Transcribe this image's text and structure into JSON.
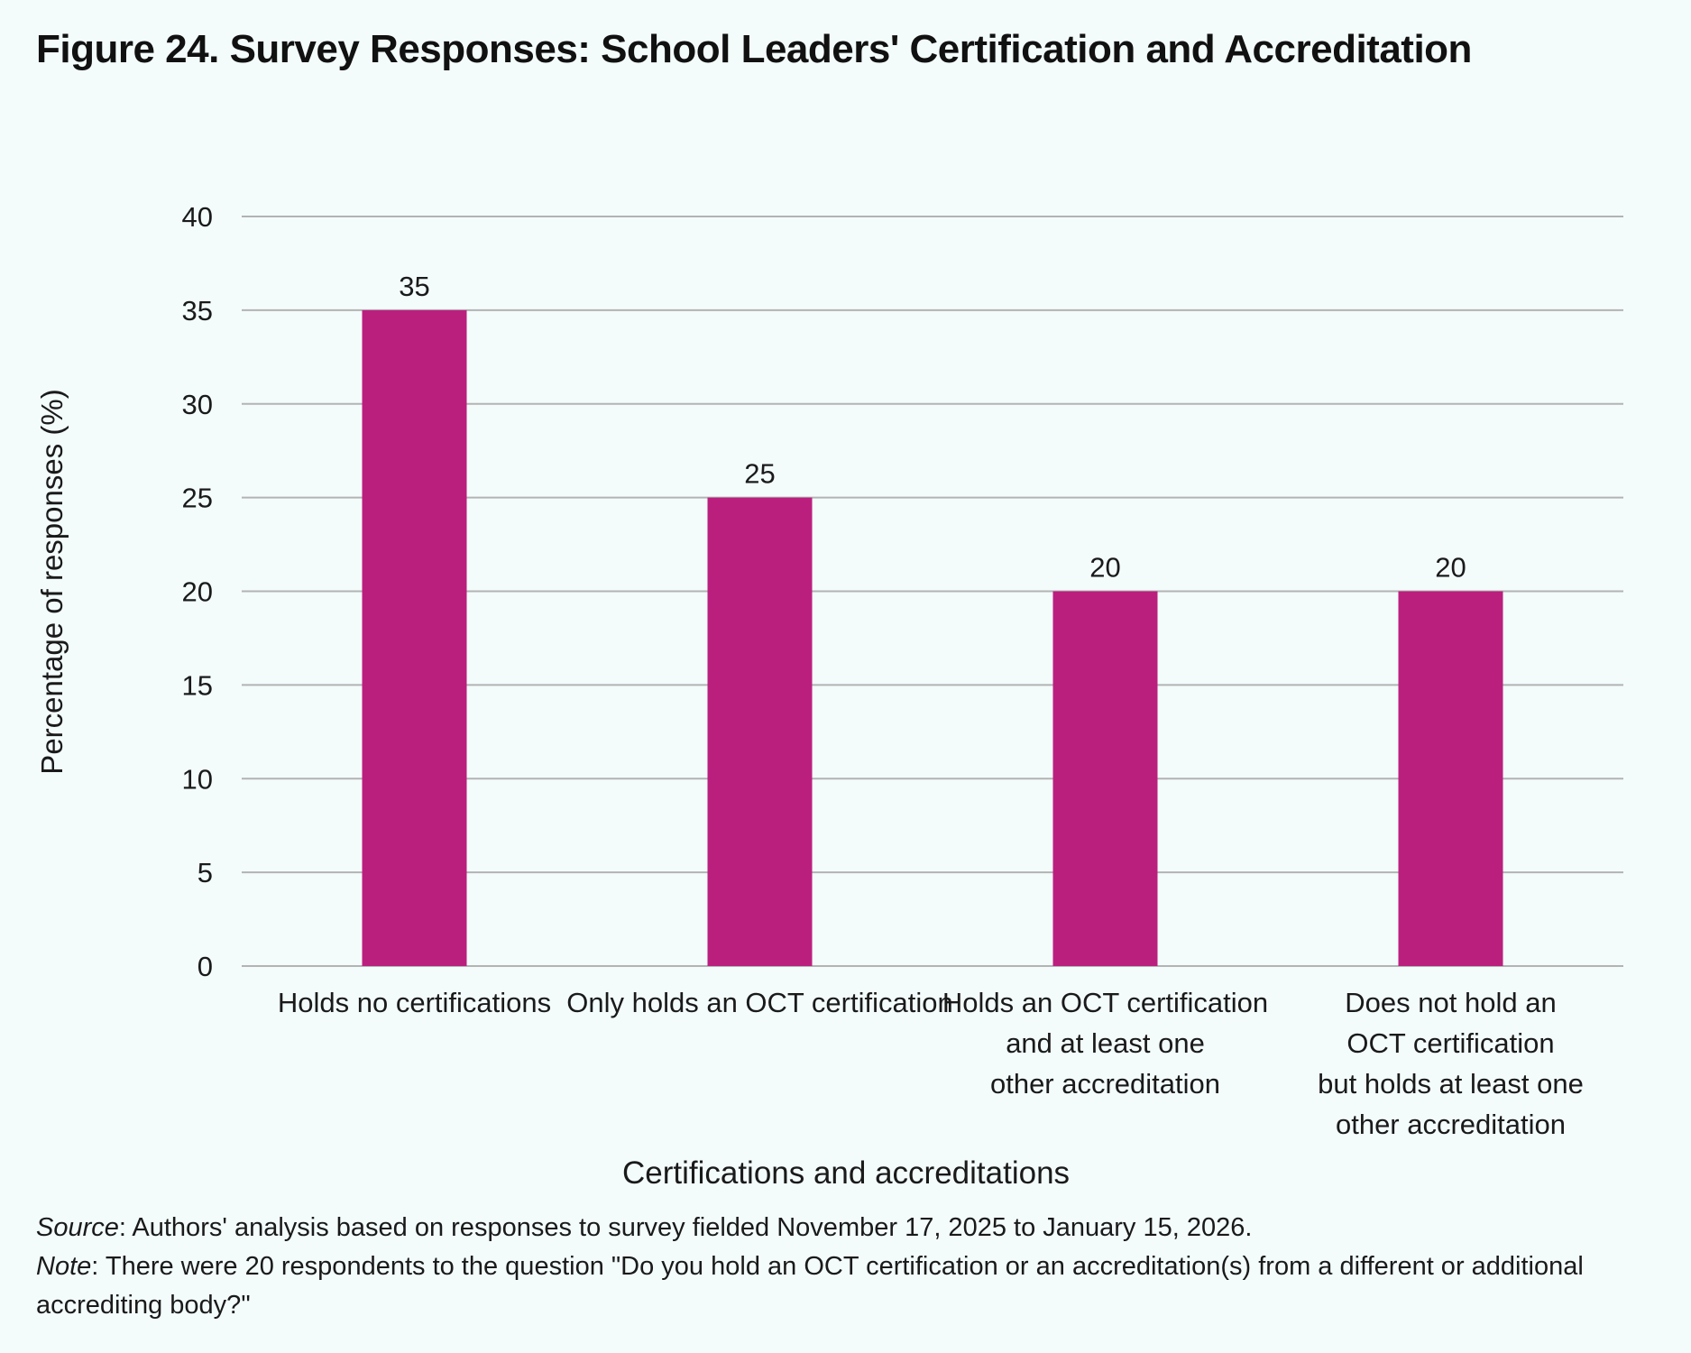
{
  "figure": {
    "title": "Figure 24. Survey Responses: School Leaders' Certification and Accreditation"
  },
  "chart_data": {
    "type": "bar",
    "categories": [
      "Holds no certifications",
      "Only holds an OCT certification",
      "Holds an OCT certification and at least one other accreditation",
      "Does not hold an OCT certification but holds at least one other accreditation"
    ],
    "category_label_lines": [
      [
        "Holds no certifications"
      ],
      [
        "Only holds an OCT certification"
      ],
      [
        "Holds an OCT certification",
        "and at least one",
        "other accreditation"
      ],
      [
        "Does not hold an",
        "OCT certification",
        "but holds at least one",
        "other accreditation"
      ]
    ],
    "values": [
      35,
      25,
      20,
      20
    ],
    "data_labels": [
      "35",
      "25",
      "20",
      "20"
    ],
    "xlabel": "Certifications and accreditations",
    "ylabel": "Percentage of responses (%)",
    "ylim": [
      0,
      40
    ],
    "yticks": [
      0,
      5,
      10,
      15,
      20,
      25,
      30,
      35,
      40
    ],
    "grid": true,
    "bar_color": "#bb1f7e",
    "gridline_color": "#b3b3b3"
  },
  "footnotes": {
    "source_label": "Source",
    "source_text": ": Authors' analysis based on responses to survey fielded November 17, 2025 to January 15, 2026.",
    "note_label": "Note",
    "note_text": ": There were 20 respondents to the question \"Do you hold an OCT certification or an accreditation(s) from a different or additional accrediting body?\""
  }
}
